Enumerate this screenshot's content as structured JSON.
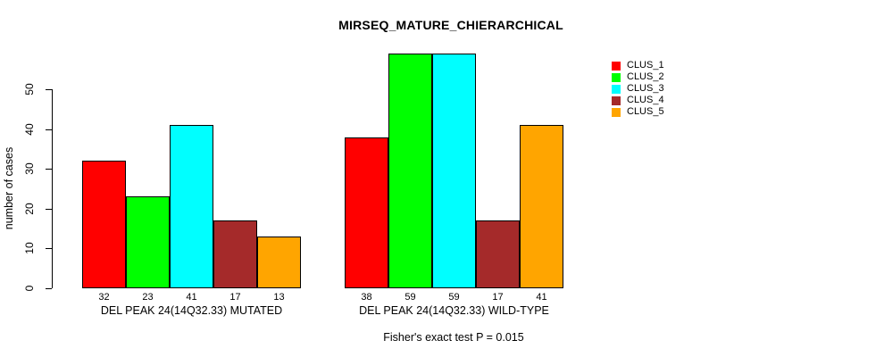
{
  "chart_data": {
    "type": "bar",
    "title": "MIRSEQ_MATURE_CHIERARCHICAL",
    "subtitle": "Fisher's exact test P = 0.015",
    "ylabel": "number of cases",
    "xlabel": "",
    "yticks": [
      0,
      10,
      20,
      30,
      40,
      50
    ],
    "ylim": [
      0,
      59
    ],
    "grid": false,
    "legend_position": "top-right",
    "value_labels_shown": true,
    "categories": [
      "DEL PEAK 24(14Q32.33) MUTATED",
      "DEL PEAK 24(14Q32.33) WILD-TYPE"
    ],
    "groups": [
      {
        "label": "DEL PEAK 24(14Q32.33) MUTATED",
        "values": [
          32,
          23,
          41,
          17,
          13
        ]
      },
      {
        "label": "DEL PEAK 24(14Q32.33) WILD-TYPE",
        "values": [
          38,
          59,
          59,
          17,
          41
        ]
      }
    ],
    "series": [
      {
        "name": "CLUS_1",
        "color": "#FF0000",
        "values": [
          32,
          38
        ]
      },
      {
        "name": "CLUS_2",
        "color": "#00FF00",
        "values": [
          23,
          59
        ]
      },
      {
        "name": "CLUS_3",
        "color": "#00FFFF",
        "values": [
          41,
          59
        ]
      },
      {
        "name": "CLUS_4",
        "color": "#A52A2A",
        "values": [
          17,
          17
        ]
      },
      {
        "name": "CLUS_5",
        "color": "#FFA500",
        "values": [
          13,
          41
        ]
      }
    ],
    "legend": [
      {
        "label": "CLUS_1",
        "color": "#FF0000"
      },
      {
        "label": "CLUS_2",
        "color": "#00FF00"
      },
      {
        "label": "CLUS_3",
        "color": "#00FFFF"
      },
      {
        "label": "CLUS_4",
        "color": "#A52A2A"
      },
      {
        "label": "CLUS_5",
        "color": "#FFA500"
      }
    ],
    "axis_color": "#000000",
    "bar_border_color": "#000000",
    "background_color": "#FFFFFF"
  }
}
